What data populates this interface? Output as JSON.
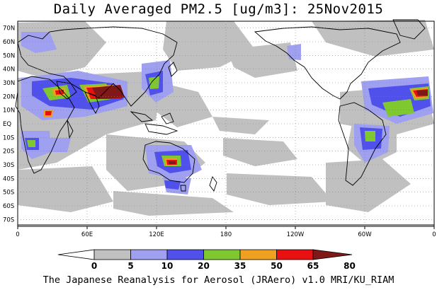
{
  "title": "Daily Averaged PM2.5 [ug/m3]: 25Nov2015",
  "footer": "The Japanese Reanalysis for Aerosol (JRAero) v1.0 MRI/KU_RIAM",
  "map": {
    "lat_labels": [
      "70N",
      "60N",
      "50N",
      "40N",
      "30N",
      "20N",
      "10N",
      "EQ",
      "10S",
      "20S",
      "30S",
      "40S",
      "50S",
      "60S",
      "70S"
    ],
    "lon_labels": [
      "0",
      "60E",
      "120E",
      "180",
      "120W",
      "60W",
      "0"
    ],
    "lat_range": [
      -75,
      75
    ],
    "lon_range": [
      0,
      360
    ],
    "grid": true
  },
  "colorbar": {
    "ticks": [
      "0",
      "5",
      "10",
      "20",
      "35",
      "50",
      "65",
      "80"
    ],
    "colors": [
      "#ffffff",
      "#c0c0c0",
      "#a0a0f0",
      "#5050ea",
      "#80c830",
      "#f0a020",
      "#e81010",
      "#801818"
    ]
  }
}
